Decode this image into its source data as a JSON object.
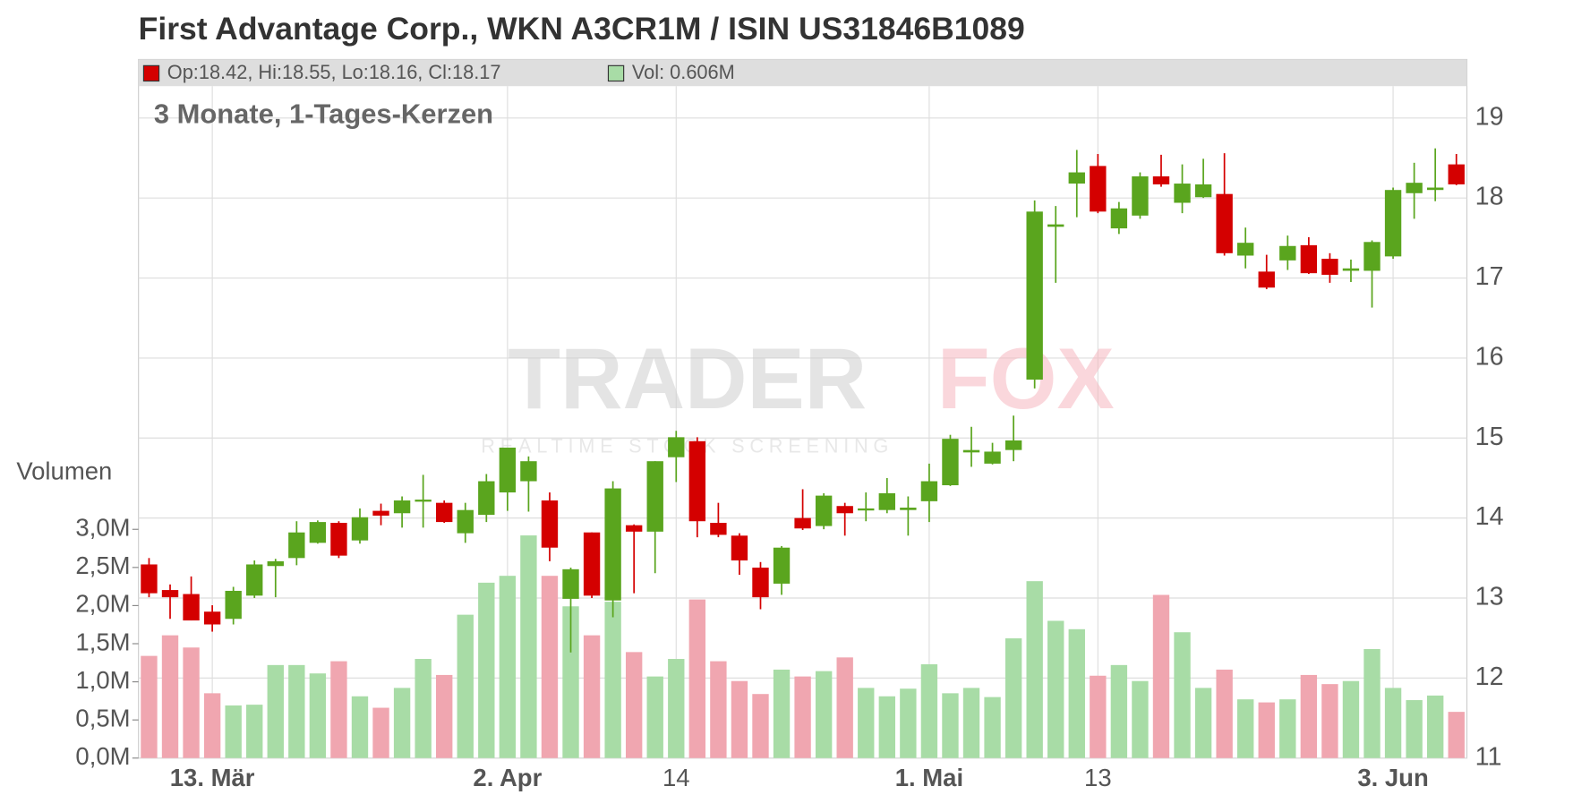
{
  "chart_data": {
    "type": "candlestick",
    "title": "First Advantage Corp., WKN A3CR1M / ISIN US31846B1089",
    "subtitle": "3 Monate, 1-Tages-Kerzen",
    "legend": [
      "Op:18.42, Hi:18.55, Lo:18.16, Cl:18.17",
      "Vol: 0.606M"
    ],
    "watermark": [
      "TRADER",
      "FOX",
      "REALTIME STOCK SCREENING"
    ],
    "categories": [
      null,
      null,
      null,
      "13. Mär",
      null,
      null,
      null,
      null,
      null,
      null,
      null,
      null,
      null,
      null,
      null,
      null,
      null,
      "2. Apr",
      null,
      null,
      null,
      null,
      null,
      null,
      null,
      "14",
      null,
      null,
      null,
      null,
      null,
      null,
      null,
      null,
      null,
      null,
      null,
      "1. Mai",
      null,
      null,
      null,
      null,
      null,
      null,
      null,
      "13",
      null,
      null,
      null,
      null,
      null,
      null,
      null,
      null,
      null,
      null,
      null,
      null,
      null,
      "3. Jun",
      null,
      null,
      null
    ],
    "open": [
      13.42,
      13.1,
      13.05,
      12.83,
      12.74,
      13.03,
      13.4,
      13.5,
      13.69,
      13.94,
      13.72,
      14.09,
      14.06,
      14.21,
      14.19,
      13.81,
      14.04,
      14.32,
      14.46,
      14.22,
      12.99,
      13.82,
      12.97,
      13.91,
      13.83,
      14.76,
      14.96,
      13.94,
      13.78,
      13.38,
      13.18,
      14.0,
      13.9,
      14.15,
      14.1,
      14.1,
      14.1,
      14.21,
      14.41,
      14.82,
      14.68,
      14.85,
      15.73,
      17.64,
      18.18,
      18.4,
      17.62,
      17.78,
      18.27,
      17.94,
      18.01,
      18.05,
      17.28,
      17.08,
      17.22,
      17.41,
      17.24,
      17.09,
      17.09,
      17.27,
      18.06,
      18.1,
      18.42
    ],
    "high": [
      13.5,
      13.17,
      13.27,
      12.91,
      13.14,
      13.47,
      13.49,
      13.96,
      13.97,
      13.96,
      14.12,
      14.18,
      14.27,
      14.54,
      14.22,
      14.19,
      14.55,
      14.88,
      14.77,
      14.32,
      13.38,
      13.82,
      14.46,
      13.92,
      14.71,
      15.09,
      15.01,
      14.19,
      13.81,
      13.45,
      13.65,
      14.36,
      14.31,
      14.19,
      14.32,
      14.5,
      14.27,
      14.68,
      15.04,
      15.14,
      14.94,
      15.28,
      17.97,
      17.9,
      18.6,
      18.55,
      17.95,
      18.32,
      18.54,
      18.42,
      18.49,
      18.56,
      17.63,
      17.29,
      17.53,
      17.51,
      17.31,
      17.23,
      17.47,
      18.13,
      18.44,
      18.62,
      18.55
    ],
    "low": [
      13.01,
      12.74,
      12.72,
      12.58,
      12.67,
      13.0,
      13.01,
      13.41,
      13.68,
      13.5,
      13.68,
      13.91,
      13.88,
      13.88,
      13.94,
      13.69,
      13.95,
      14.09,
      14.08,
      13.46,
      12.32,
      13.0,
      12.76,
      13.06,
      13.31,
      14.45,
      13.76,
      13.76,
      13.29,
      12.86,
      13.04,
      13.85,
      13.86,
      13.78,
      13.96,
      14.06,
      13.78,
      13.95,
      14.4,
      14.64,
      14.67,
      14.71,
      15.62,
      16.94,
      17.76,
      17.81,
      17.55,
      17.74,
      18.14,
      17.81,
      18.0,
      17.28,
      17.12,
      16.86,
      17.1,
      17.05,
      16.94,
      16.95,
      16.63,
      17.24,
      17.74,
      17.96,
      18.16
    ],
    "close": [
      13.06,
      13.01,
      12.72,
      12.67,
      13.09,
      13.42,
      13.46,
      13.82,
      13.95,
      13.53,
      14.01,
      14.03,
      14.22,
      14.23,
      13.95,
      14.1,
      14.46,
      14.88,
      14.71,
      13.63,
      13.36,
      13.03,
      14.37,
      13.83,
      14.71,
      15.01,
      13.96,
      13.79,
      13.47,
      13.01,
      13.63,
      13.87,
      14.28,
      14.06,
      14.12,
      14.31,
      14.13,
      14.46,
      14.99,
      14.85,
      14.83,
      14.97,
      17.83,
      17.67,
      18.32,
      17.83,
      17.87,
      18.27,
      18.17,
      18.18,
      18.17,
      17.31,
      17.44,
      16.88,
      17.4,
      17.06,
      17.04,
      17.12,
      17.45,
      18.1,
      18.19,
      18.13,
      18.17
    ],
    "up_color": "#5aa51e",
    "down_color": "#d40000",
    "ylim": [
      11,
      19
    ],
    "yticks": [
      11,
      12,
      13,
      14,
      15,
      16,
      17,
      18,
      19
    ],
    "grid": true,
    "volume": {
      "label": "Volumen",
      "values": [
        1.34,
        1.61,
        1.45,
        0.85,
        0.69,
        0.7,
        1.22,
        1.22,
        1.11,
        1.27,
        0.81,
        0.66,
        0.92,
        1.3,
        1.09,
        1.88,
        2.3,
        2.39,
        2.92,
        2.39,
        1.99,
        1.61,
        2.05,
        1.39,
        1.07,
        1.3,
        2.08,
        1.27,
        1.01,
        0.84,
        1.16,
        1.07,
        1.14,
        1.32,
        0.92,
        0.81,
        0.91,
        1.23,
        0.85,
        0.92,
        0.8,
        1.57,
        2.32,
        1.8,
        1.69,
        1.08,
        1.22,
        1.01,
        2.14,
        1.65,
        0.92,
        1.16,
        0.77,
        0.73,
        0.77,
        1.09,
        0.97,
        1.01,
        1.43,
        0.92,
        0.76,
        0.82,
        0.606
      ],
      "up_color": "#a8dca6",
      "down_color": "#f0a6b0",
      "ylim": [
        0,
        3
      ],
      "yticks": [
        {
          "value": 0,
          "label": "0,0M"
        },
        {
          "value": 0.5,
          "label": "0,5M"
        },
        {
          "value": 1,
          "label": "1,0M"
        },
        {
          "value": 1.5,
          "label": "1,5M"
        },
        {
          "value": 2,
          "label": "2,0M"
        },
        {
          "value": 2.5,
          "label": "2,5M"
        },
        {
          "value": 3,
          "label": "3,0M"
        }
      ]
    }
  }
}
